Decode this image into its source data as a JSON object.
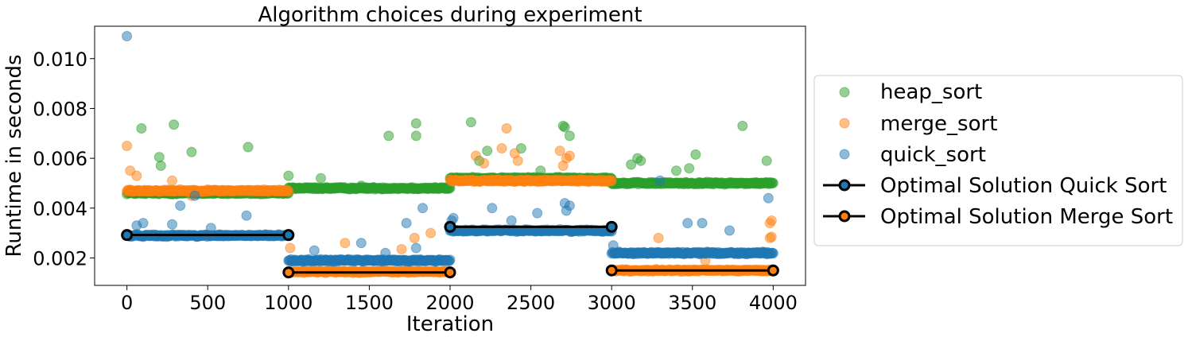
{
  "chart_data": {
    "type": "scatter",
    "title": "Algorithm choices during experiment",
    "xlabel": "Iteration",
    "ylabel": "Runtime in seconds",
    "xlim": [
      -200,
      4200
    ],
    "ylim": [
      0.0009,
      0.0113
    ],
    "xticks": [
      0,
      500,
      1000,
      1500,
      2000,
      2500,
      3000,
      3500,
      4000
    ],
    "yticks": [
      0.002,
      0.004,
      0.006,
      0.008,
      0.01
    ],
    "ytick_labels": [
      "0.002",
      "0.004",
      "0.006",
      "0.008",
      "0.010"
    ],
    "grid": false,
    "legend_position": "right-outside",
    "segments": [
      {
        "start": 0,
        "end": 1000,
        "quick": 0.0029,
        "merge": 0.0047,
        "heap": 0.0046,
        "optimal": "quick_sort",
        "optimal_value": 0.00292
      },
      {
        "start": 1000,
        "end": 2000,
        "quick": 0.0019,
        "merge": 0.00145,
        "heap": 0.0048,
        "optimal": "merge_sort",
        "optimal_value": 0.00142
      },
      {
        "start": 2000,
        "end": 3000,
        "quick": 0.0031,
        "merge": 0.0051,
        "heap": 0.0052,
        "optimal": "quick_sort",
        "optimal_value": 0.00325
      },
      {
        "start": 3000,
        "end": 4000,
        "quick": 0.0022,
        "merge": 0.0015,
        "heap": 0.005,
        "optimal": "merge_sort",
        "optimal_value": 0.0015
      }
    ],
    "series": [
      {
        "name": "heap_sort",
        "color": "#2ca02c",
        "outliers": [
          [
            90,
            0.0072
          ],
          [
            290,
            0.00735
          ],
          [
            200,
            0.00605
          ],
          [
            210,
            0.0057
          ],
          [
            400,
            0.00625
          ],
          [
            750,
            0.00645
          ],
          [
            1620,
            0.0069
          ],
          [
            1790,
            0.0074
          ],
          [
            1790,
            0.0069
          ],
          [
            2130,
            0.00745
          ],
          [
            2230,
            0.0063
          ],
          [
            2180,
            0.0059
          ],
          [
            2440,
            0.0064
          ],
          [
            2700,
            0.0073
          ],
          [
            2710,
            0.00725
          ],
          [
            2740,
            0.0069
          ],
          [
            3120,
            0.00575
          ],
          [
            3160,
            0.006
          ],
          [
            3180,
            0.0059
          ],
          [
            3400,
            0.0055
          ],
          [
            3480,
            0.0056
          ],
          [
            3520,
            0.00615
          ],
          [
            3810,
            0.0073
          ],
          [
            3960,
            0.0059
          ],
          [
            1000,
            0.0053
          ],
          [
            1200,
            0.0052
          ],
          [
            1450,
            0.0049
          ],
          [
            2560,
            0.0055
          ]
        ]
      },
      {
        "name": "merge_sort",
        "color": "#ff7f0e",
        "outliers": [
          [
            0,
            0.0065
          ],
          [
            20,
            0.0055
          ],
          [
            60,
            0.0053
          ],
          [
            280,
            0.0051
          ],
          [
            330,
            0.00475
          ],
          [
            400,
            0.0045
          ],
          [
            1010,
            0.0024
          ],
          [
            1350,
            0.0026
          ],
          [
            1700,
            0.00235
          ],
          [
            1780,
            0.0028
          ],
          [
            1880,
            0.003
          ],
          [
            2160,
            0.0061
          ],
          [
            2210,
            0.0058
          ],
          [
            2350,
            0.0072
          ],
          [
            2320,
            0.0064
          ],
          [
            2400,
            0.0062
          ],
          [
            2420,
            0.0059
          ],
          [
            2680,
            0.0063
          ],
          [
            2720,
            0.006
          ],
          [
            2740,
            0.0061
          ],
          [
            2700,
            0.0057
          ],
          [
            3290,
            0.0028
          ],
          [
            3580,
            0.0019
          ],
          [
            3990,
            0.0035
          ],
          [
            3980,
            0.0034
          ],
          [
            3990,
            0.00285
          ],
          [
            3980,
            0.0028
          ]
        ]
      },
      {
        "name": "quick_sort",
        "color": "#1f77b4",
        "outliers": [
          [
            0,
            0.0109
          ],
          [
            60,
            0.0033
          ],
          [
            100,
            0.0034
          ],
          [
            280,
            0.00335
          ],
          [
            330,
            0.0041
          ],
          [
            420,
            0.0045
          ],
          [
            520,
            0.0032
          ],
          [
            740,
            0.0037
          ],
          [
            1000,
            0.00295
          ],
          [
            1160,
            0.0023
          ],
          [
            1450,
            0.0026
          ],
          [
            1600,
            0.0022
          ],
          [
            1730,
            0.0034
          ],
          [
            1830,
            0.004
          ],
          [
            1790,
            0.0024
          ],
          [
            2010,
            0.0035
          ],
          [
            2020,
            0.0036
          ],
          [
            2260,
            0.004
          ],
          [
            2380,
            0.0035
          ],
          [
            2540,
            0.0038
          ],
          [
            2710,
            0.0042
          ],
          [
            2720,
            0.0039
          ],
          [
            2740,
            0.0041
          ],
          [
            3010,
            0.0025
          ],
          [
            3300,
            0.0051
          ],
          [
            3470,
            0.0034
          ],
          [
            3560,
            0.0034
          ],
          [
            3730,
            0.0031
          ],
          [
            3970,
            0.0044
          ],
          [
            3210,
            0.0022
          ]
        ]
      },
      {
        "name": "Optimal Solution Quick Sort",
        "color": "#000000",
        "marker_face": "#1f77b4"
      },
      {
        "name": "Optimal Solution Merge Sort",
        "color": "#000000",
        "marker_face": "#ff7f0e"
      }
    ]
  }
}
